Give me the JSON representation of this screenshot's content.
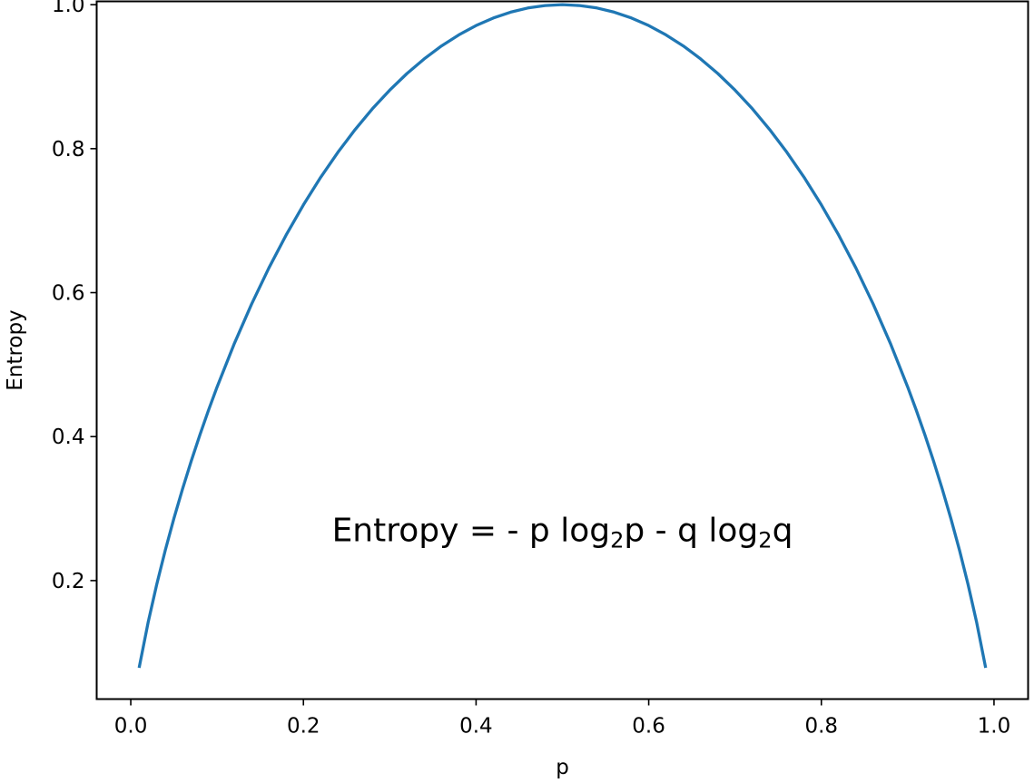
{
  "chart_data": {
    "type": "line",
    "xlabel": "p",
    "ylabel": "Entropy",
    "xlim": [
      -0.0395,
      1.0395
    ],
    "ylim": [
      0.0354,
      1.0046
    ],
    "xticks": [
      0.0,
      0.2,
      0.4,
      0.6,
      0.8,
      1.0
    ],
    "xtick_labels": [
      "0.0",
      "0.2",
      "0.4",
      "0.6",
      "0.8",
      "1.0"
    ],
    "yticks": [
      0.2,
      0.4,
      0.6,
      0.8,
      1.0
    ],
    "ytick_labels": [
      "0.2",
      "0.4",
      "0.6",
      "0.8",
      "1.0"
    ],
    "grid": false,
    "legend": false,
    "annotation": {
      "prefix": "Entropy = - p log",
      "sub1": "2",
      "middle": "p - q log",
      "sub2": "2",
      "suffix": "q",
      "x": 0.5,
      "y": 0.27
    },
    "series": [
      {
        "color": "#1f77b4",
        "x": [
          0.01,
          0.02,
          0.03,
          0.04,
          0.05,
          0.06,
          0.07,
          0.08,
          0.09,
          0.1,
          0.12,
          0.14,
          0.16,
          0.18,
          0.2,
          0.22,
          0.24,
          0.26,
          0.28,
          0.3,
          0.32,
          0.34,
          0.36,
          0.38,
          0.4,
          0.42,
          0.44,
          0.46,
          0.48,
          0.5,
          0.52,
          0.54,
          0.56,
          0.58,
          0.6,
          0.62,
          0.64,
          0.66,
          0.68,
          0.7,
          0.72,
          0.74,
          0.76,
          0.78,
          0.8,
          0.82,
          0.84,
          0.86,
          0.88,
          0.9,
          0.91,
          0.92,
          0.93,
          0.94,
          0.95,
          0.96,
          0.97,
          0.98,
          0.99
        ],
        "y": [
          0.0808,
          0.1414,
          0.1944,
          0.2423,
          0.2864,
          0.3274,
          0.3659,
          0.4022,
          0.4365,
          0.469,
          0.5294,
          0.5842,
          0.6343,
          0.6801,
          0.7219,
          0.7602,
          0.795,
          0.8267,
          0.8555,
          0.8813,
          0.9044,
          0.9248,
          0.9427,
          0.958,
          0.971,
          0.9815,
          0.9896,
          0.9954,
          0.9988,
          1.0,
          0.9988,
          0.9954,
          0.9896,
          0.9815,
          0.971,
          0.958,
          0.9427,
          0.9248,
          0.9044,
          0.8813,
          0.8555,
          0.8267,
          0.795,
          0.7602,
          0.7219,
          0.6801,
          0.6343,
          0.5842,
          0.5294,
          0.469,
          0.4365,
          0.4022,
          0.3659,
          0.3274,
          0.2864,
          0.2423,
          0.1944,
          0.1414,
          0.0808
        ]
      }
    ]
  }
}
